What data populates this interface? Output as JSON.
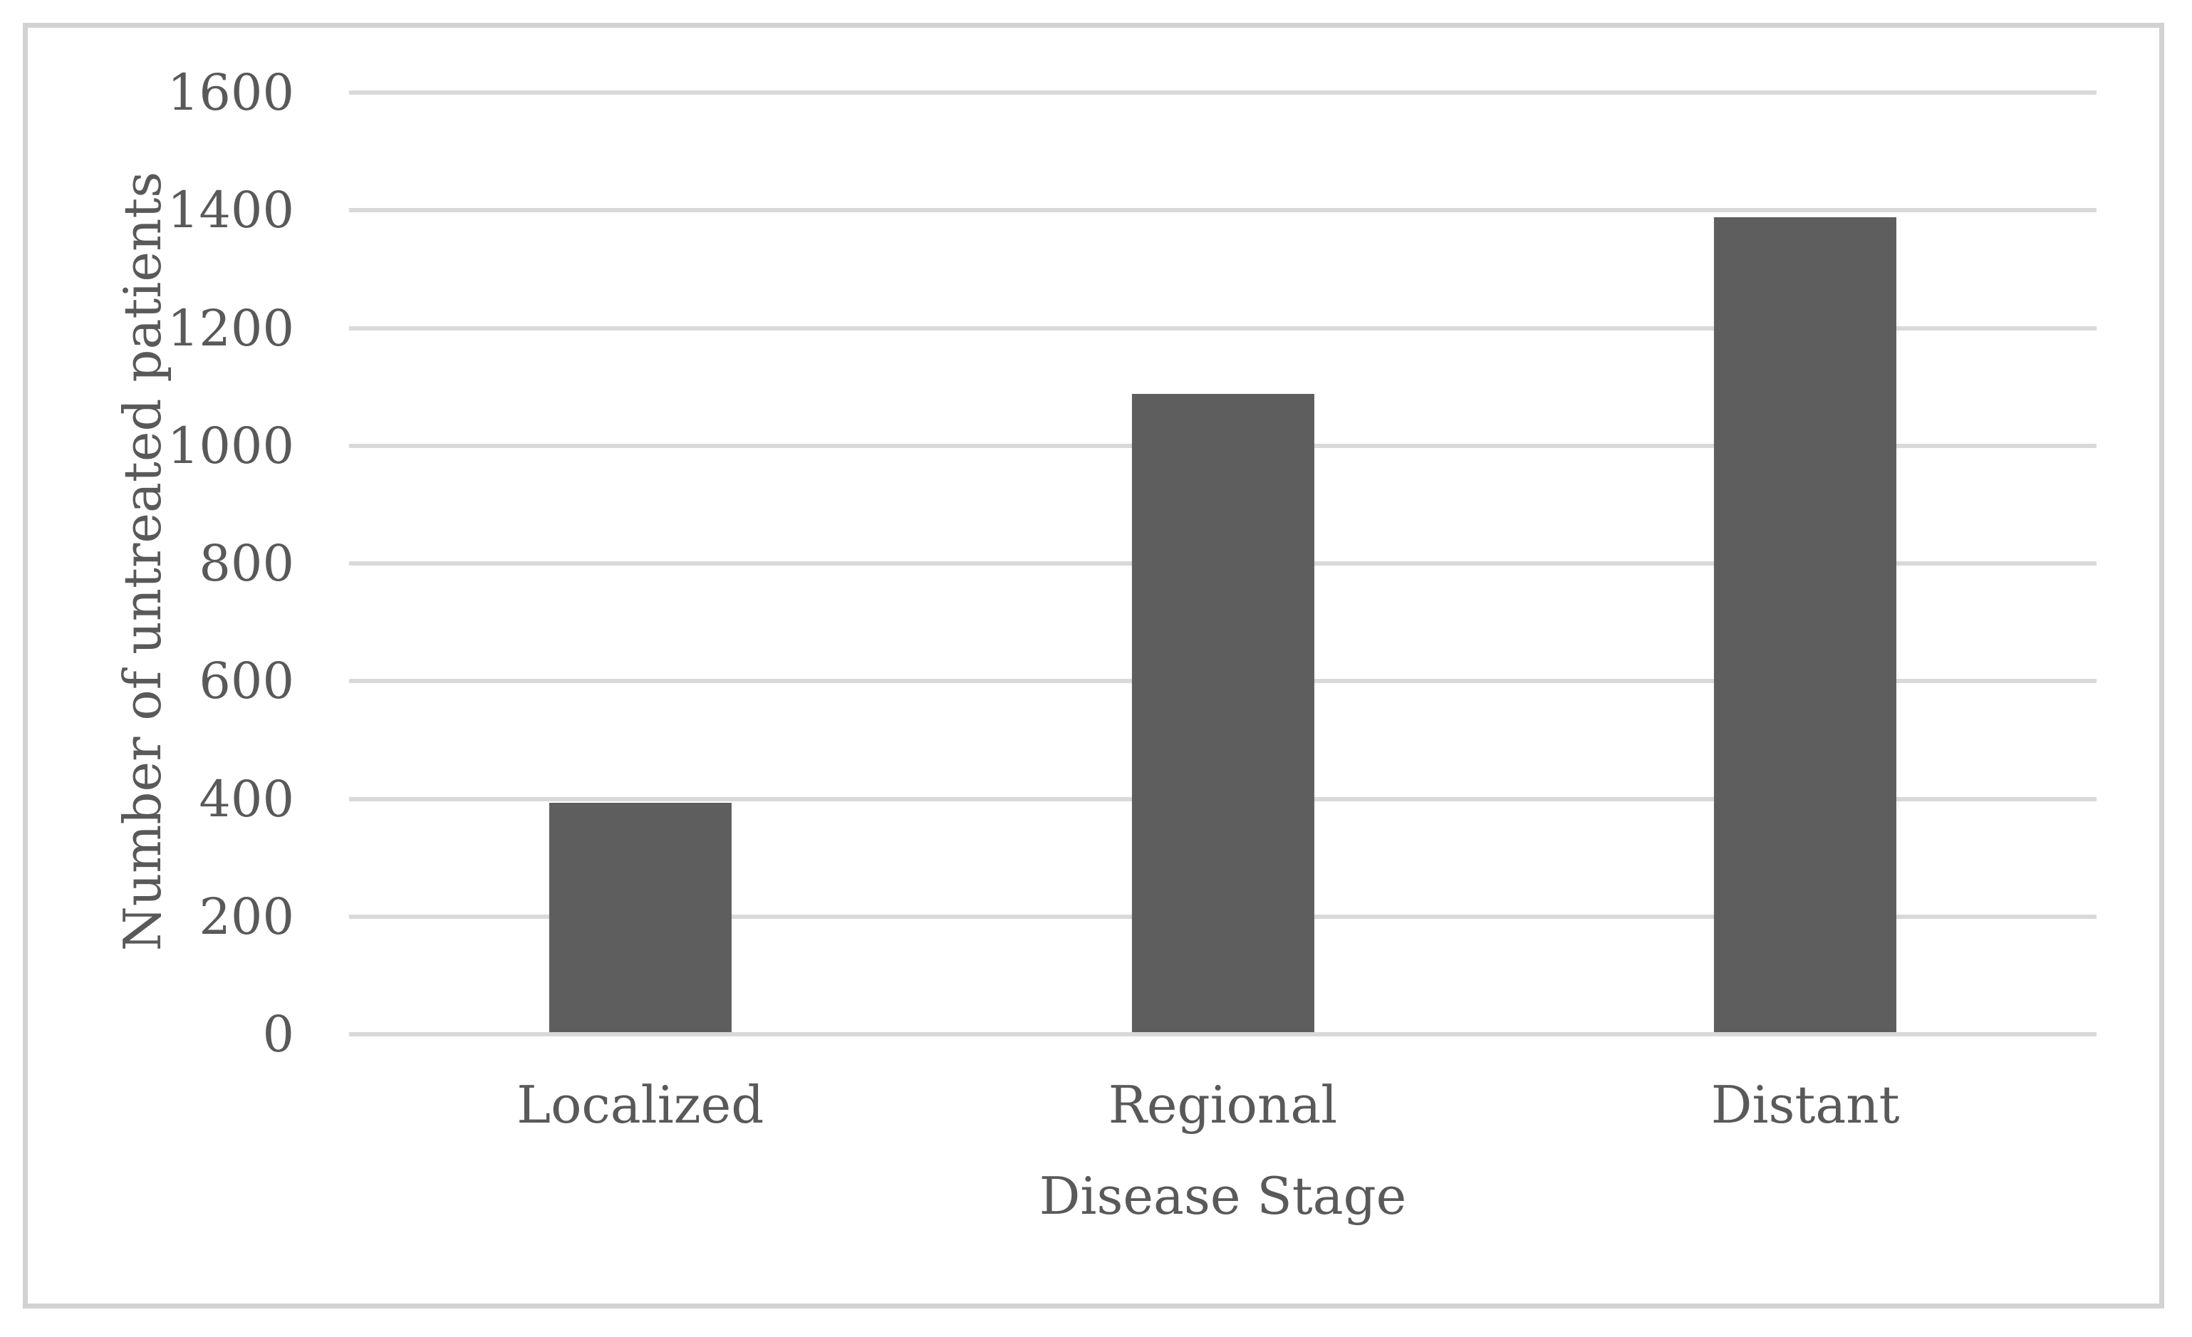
{
  "figure": {
    "background_color": "#FFFFFF",
    "frame_border_color": "#D2D2D2",
    "text_color": "#595959"
  },
  "chart_data": {
    "type": "bar",
    "title": "",
    "categories": [
      "Localized",
      "Regional",
      "Distant"
    ],
    "values": [
      390,
      1085,
      1385
    ],
    "xlabel": "Disease Stage",
    "ylabel": "Number of untreated patients",
    "ylim": [
      0,
      1600
    ],
    "yticks": [
      0,
      200,
      400,
      600,
      800,
      1000,
      1200,
      1400,
      1600
    ],
    "grid": "horizontal",
    "gridline_color": "#D9D9D9",
    "bar_color": "#5E5E5E",
    "bar_width_fraction": 0.1044,
    "legend": "none"
  }
}
